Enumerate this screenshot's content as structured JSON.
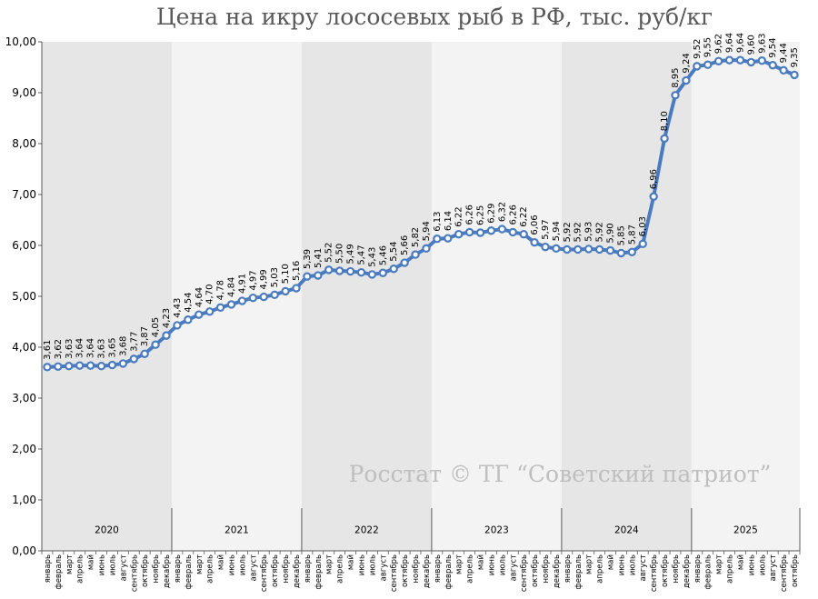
{
  "chart_data": {
    "type": "line",
    "title": "Цена на икру лососевых рыб в РФ, тыс. руб/кг",
    "watermark": "Росстат © ТГ “Советский патриот”",
    "ylim": [
      0,
      10
    ],
    "yticks": [
      "0,00",
      "1,00",
      "2,00",
      "3,00",
      "4,00",
      "5,00",
      "6,00",
      "7,00",
      "8,00",
      "9,00",
      "10,00"
    ],
    "grid": false,
    "months": [
      "январь",
      "февраль",
      "март",
      "апрель",
      "май",
      "июнь",
      "июль",
      "август",
      "сентябрь",
      "октябрь",
      "ноябрь",
      "декабрь"
    ],
    "years": [
      {
        "label": "2020",
        "count": 12
      },
      {
        "label": "2021",
        "count": 12
      },
      {
        "label": "2022",
        "count": 12
      },
      {
        "label": "2023",
        "count": 12
      },
      {
        "label": "2024",
        "count": 12
      },
      {
        "label": "2025",
        "count": 10
      }
    ],
    "values": [
      3.61,
      3.62,
      3.63,
      3.64,
      3.64,
      3.63,
      3.65,
      3.68,
      3.77,
      3.87,
      4.05,
      4.23,
      4.43,
      4.54,
      4.64,
      4.7,
      4.78,
      4.84,
      4.91,
      4.97,
      4.99,
      5.03,
      5.1,
      5.16,
      5.39,
      5.41,
      5.52,
      5.5,
      5.49,
      5.47,
      5.43,
      5.46,
      5.54,
      5.66,
      5.82,
      5.94,
      6.13,
      6.14,
      6.22,
      6.26,
      6.25,
      6.29,
      6.32,
      6.26,
      6.22,
      6.06,
      5.97,
      5.94,
      5.92,
      5.92,
      5.93,
      5.92,
      5.9,
      5.85,
      5.87,
      6.03,
      6.96,
      8.1,
      8.95,
      9.24,
      9.52,
      9.55,
      9.62,
      9.64,
      9.64,
      9.6,
      9.63,
      9.54,
      9.44,
      9.35
    ],
    "data_labels": [
      "3,61",
      "3,62",
      "3,63",
      "3,64",
      "3,64",
      "3,63",
      "3,65",
      "3,68",
      "3,77",
      "3,87",
      "4,05",
      "4,23",
      "4,43",
      "4,54",
      "4,64",
      "4,70",
      "4,78",
      "4,84",
      "4,91",
      "4,97",
      "4,99",
      "5,03",
      "5,10",
      "5,16",
      "5,39",
      "5,41",
      "5,52",
      "5,50",
      "5,49",
      "5,47",
      "5,43",
      "5,46",
      "5,54",
      "5,66",
      "5,82",
      "5,94",
      "6,13",
      "6,14",
      "6,22",
      "6,26",
      "6,25",
      "6,29",
      "6,32",
      "6,26",
      "6,22",
      "6,06",
      "5,97",
      "5,94",
      "5,92",
      "5,92",
      "5,93",
      "5,92",
      "5,90",
      "5,85",
      "5,87",
      "6,03",
      "6,96",
      "8,10",
      "8,95",
      "9,24",
      "9,52",
      "9,55",
      "9,62",
      "9,64",
      "9,64",
      "9,60",
      "9,63",
      "9,54",
      "9,44",
      "9,35"
    ],
    "colors": {
      "line": "#4a7bbf",
      "marker_fill": "#ffffff",
      "marker_stroke": "#4a7bbf",
      "band_dark": "#e6e6e6",
      "band_light": "#f3f3f3",
      "axis": "#595959",
      "title": "#595959",
      "watermark": "#bfbfbf"
    }
  }
}
